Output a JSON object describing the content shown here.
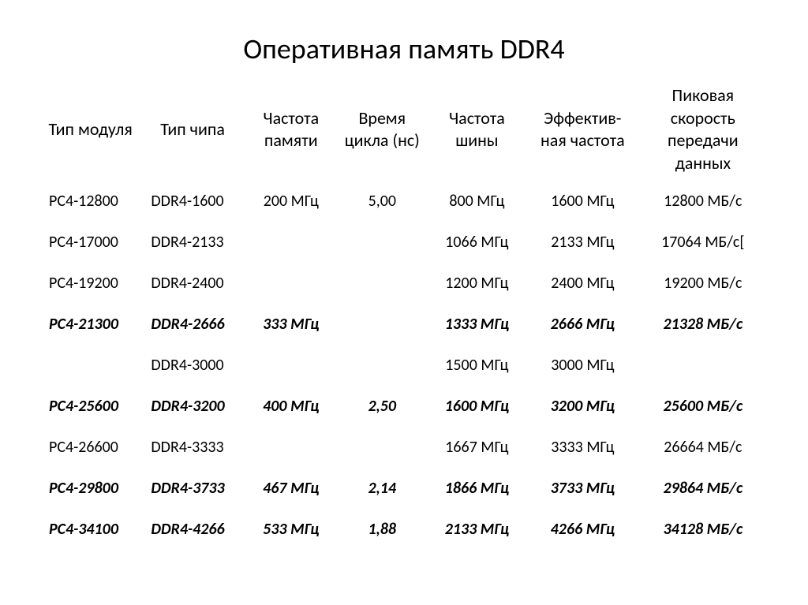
{
  "title": "Оперативная память DDR4",
  "table": {
    "columns": [
      "Тип модуля",
      "Тип чипа",
      "Частота памяти",
      "Время цикла (нс)",
      "Частота шины",
      "Эффектив-ная частота",
      "Пиковая скорость передачи данных"
    ],
    "rows": [
      {
        "bold": false,
        "cells": [
          "PC4-12800",
          "DDR4-1600",
          "200 МГц",
          "5,00",
          "800 МГц",
          "1600 МГц",
          "12800 МБ/с"
        ]
      },
      {
        "bold": false,
        "cells": [
          "PC4-17000",
          "DDR4-2133",
          "",
          "",
          "1066 МГц",
          "2133 МГц",
          "17064 МБ/с["
        ]
      },
      {
        "bold": false,
        "cells": [
          "PC4-19200",
          "DDR4-2400",
          "",
          "",
          "1200 МГц",
          "2400 МГц",
          "19200 МБ/с"
        ]
      },
      {
        "bold": true,
        "cells": [
          "PC4-21300",
          "DDR4-2666",
          "333 МГц",
          "",
          "1333 МГц",
          "2666 МГц",
          "21328 МБ/с"
        ]
      },
      {
        "bold": false,
        "cells": [
          "",
          "DDR4-3000",
          "",
          "",
          "1500 МГц",
          "3000 МГц",
          ""
        ]
      },
      {
        "bold": true,
        "cells": [
          "PC4-25600",
          "DDR4-3200",
          "400 МГц",
          "2,50",
          "1600 МГц",
          "3200 МГц",
          "25600 МБ/с"
        ]
      },
      {
        "bold": false,
        "cells": [
          "PC4-26600",
          "DDR4-3333",
          "",
          "",
          "1667 МГц",
          "3333 МГц",
          "26664 МБ/с"
        ]
      },
      {
        "bold": true,
        "cells": [
          "PC4-29800",
          "DDR4-3733",
          "467 МГц",
          "2,14",
          "1866 МГц",
          "3733 МГц",
          "29864 МБ/с"
        ]
      },
      {
        "bold": true,
        "cells": [
          "PC4-34100",
          "DDR4-4266",
          "533 МГц",
          "1,88",
          "2133 МГц",
          "4266 МГц",
          "34128 МБ/с"
        ]
      }
    ]
  }
}
